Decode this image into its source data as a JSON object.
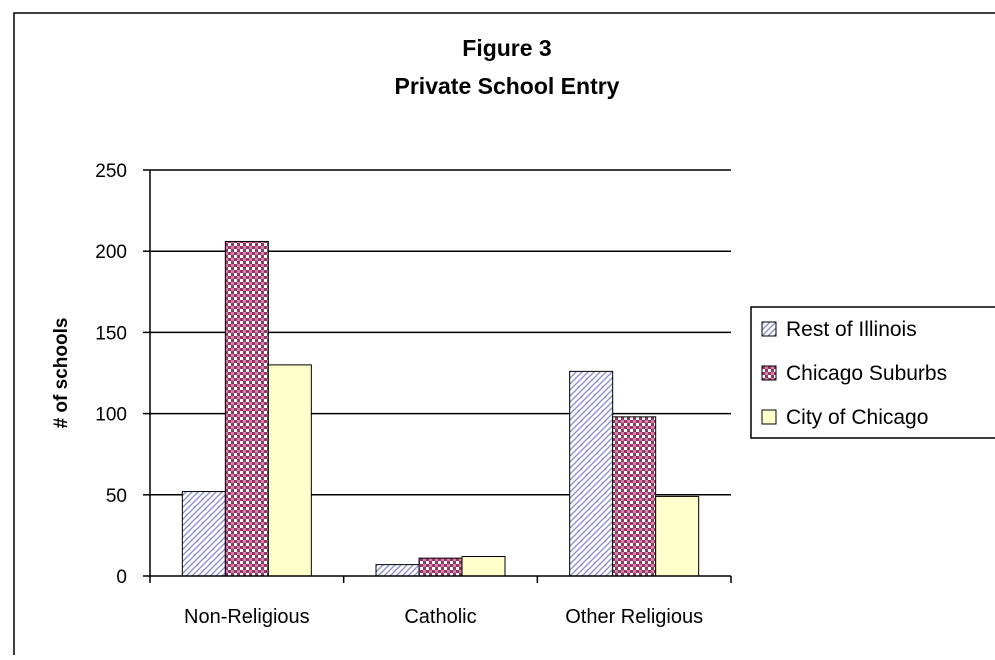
{
  "chart_data": {
    "type": "bar",
    "title": "Figure 3",
    "subtitle": "Private School Entry",
    "xlabel": "",
    "ylabel": "# of schools",
    "categories": [
      "Non-Religious",
      "Catholic",
      "Other Religious"
    ],
    "ylim": [
      0,
      250
    ],
    "yticks": [
      0,
      50,
      100,
      150,
      200,
      250
    ],
    "grid": true,
    "legend_position": "right",
    "series": [
      {
        "name": "Rest of Illinois",
        "values": [
          52,
          7,
          126
        ],
        "color": "#c9cdf0",
        "pattern": "diagonal-hatch"
      },
      {
        "name": "Chicago Suburbs",
        "values": [
          206,
          11,
          98
        ],
        "color": "#993366",
        "pattern": "checkered"
      },
      {
        "name": "City of Chicago",
        "values": [
          130,
          12,
          49
        ],
        "color": "#ffffcc",
        "pattern": "solid"
      }
    ]
  }
}
